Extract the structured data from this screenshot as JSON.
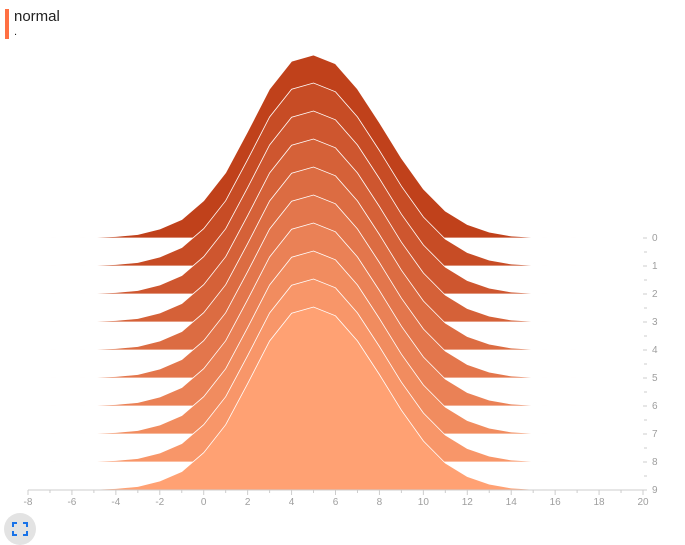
{
  "header": {
    "title": "normal",
    "subtitle": ".",
    "accent_color": "#ff7043"
  },
  "colors": {
    "darkest": "#c0411b",
    "lightest": "#ffa173",
    "outline": "#ffffff",
    "axis": "#cccccc",
    "tick_text": "#9e9e9e"
  },
  "chart_data": {
    "type": "area",
    "layout": "ridgeline",
    "title": "normal",
    "xlim": [
      -8,
      20
    ],
    "x_ticks": [
      -8,
      -6,
      -4,
      -2,
      0,
      2,
      4,
      6,
      8,
      10,
      12,
      14,
      16,
      18,
      20
    ],
    "steps": [
      0,
      1,
      2,
      3,
      4,
      5,
      6,
      7,
      8,
      9
    ],
    "x": [
      -8,
      -7,
      -6,
      -5,
      -4,
      -3,
      -2,
      -1,
      0,
      1,
      2,
      3,
      4,
      5,
      6,
      7,
      8,
      9,
      10,
      11,
      12,
      13,
      14,
      15,
      16,
      17,
      18,
      19,
      20
    ],
    "density": [
      0,
      0,
      0.002,
      0.004,
      0.008,
      0.019,
      0.049,
      0.101,
      0.204,
      0.357,
      0.581,
      0.814,
      0.966,
      1.0,
      0.952,
      0.814,
      0.631,
      0.436,
      0.268,
      0.147,
      0.074,
      0.032,
      0.011,
      0.004,
      0.002,
      0,
      0,
      0,
      0
    ]
  },
  "controls": {
    "fullscreen_icon": "fullscreen-icon"
  }
}
